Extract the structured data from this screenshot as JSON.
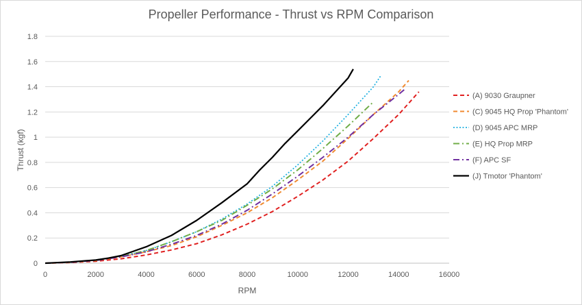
{
  "chart_data": {
    "type": "line",
    "title": "Propeller Performance - Thrust vs RPM Comparison",
    "xlabel": "RPM",
    "ylabel": "Thrust (kgf)",
    "xlim": [
      0,
      16000
    ],
    "ylim": [
      0,
      1.8
    ],
    "xticks": [
      "0",
      "2000",
      "4000",
      "6000",
      "8000",
      "10000",
      "12000",
      "14000",
      "16000"
    ],
    "yticks": [
      "0",
      "0.2",
      "0.4",
      "0.6",
      "0.8",
      "1",
      "1.2",
      "1.4",
      "1.6",
      "1.8"
    ],
    "grid": "horizontal",
    "legend": "right",
    "series": [
      {
        "name": "(A) 9030 Graupner",
        "color": "#e02020",
        "dash": "dashed",
        "x": [
          0,
          1000,
          2000,
          3000,
          4000,
          5000,
          6000,
          7000,
          8000,
          9000,
          10000,
          11000,
          12000,
          13000,
          14000,
          14800
        ],
        "y": [
          0,
          0.005,
          0.015,
          0.035,
          0.065,
          0.105,
          0.155,
          0.225,
          0.31,
          0.41,
          0.53,
          0.66,
          0.81,
          0.99,
          1.18,
          1.36
        ]
      },
      {
        "name": "(C) 9045 HQ Prop 'Phantom'",
        "color": "#f08a30",
        "dash": "dashed",
        "x": [
          0,
          1000,
          2000,
          3000,
          4000,
          5000,
          6000,
          7000,
          8000,
          9000,
          10000,
          11000,
          12000,
          13000,
          14000,
          14400
        ],
        "y": [
          0,
          0.006,
          0.02,
          0.05,
          0.09,
          0.14,
          0.21,
          0.3,
          0.4,
          0.52,
          0.66,
          0.81,
          0.99,
          1.18,
          1.36,
          1.45
        ]
      },
      {
        "name": "(D) 9045 APC MRP",
        "color": "#1fb0e0",
        "dash": "dotted",
        "x": [
          0,
          1000,
          2000,
          3000,
          4000,
          5000,
          6000,
          7000,
          8000,
          9000,
          10000,
          11000,
          12000,
          13000,
          13300
        ],
        "y": [
          0,
          0.008,
          0.025,
          0.055,
          0.1,
          0.17,
          0.25,
          0.35,
          0.47,
          0.61,
          0.78,
          0.97,
          1.18,
          1.4,
          1.49
        ]
      },
      {
        "name": "(E) HQ Prop MRP",
        "color": "#70ad47",
        "dash": "dashdot",
        "x": [
          0,
          1000,
          2000,
          3000,
          4000,
          5000,
          6000,
          7000,
          8000,
          9000,
          10000,
          11000,
          12000,
          13000
        ],
        "y": [
          0,
          0.008,
          0.025,
          0.055,
          0.1,
          0.17,
          0.25,
          0.34,
          0.46,
          0.59,
          0.74,
          0.91,
          1.09,
          1.28
        ]
      },
      {
        "name": "(F) APC SF",
        "color": "#7030a0",
        "dash": "dashdot",
        "x": [
          0,
          1000,
          2000,
          3000,
          4000,
          5000,
          6000,
          7000,
          8000,
          9000,
          10000,
          11000,
          12000,
          13000,
          14000,
          14300
        ],
        "y": [
          0,
          0.007,
          0.022,
          0.05,
          0.09,
          0.15,
          0.22,
          0.31,
          0.42,
          0.55,
          0.69,
          0.84,
          1.0,
          1.18,
          1.34,
          1.39
        ]
      },
      {
        "name": "(J) Tmotor 'Phantom'",
        "color": "#000000",
        "dash": "solid",
        "x": [
          0,
          1000,
          2000,
          2500,
          3000,
          4000,
          5000,
          6000,
          7000,
          8000,
          8500,
          9000,
          9500,
          10000,
          10500,
          11000,
          11500,
          12000,
          12200
        ],
        "y": [
          0,
          0.01,
          0.025,
          0.04,
          0.06,
          0.13,
          0.22,
          0.34,
          0.48,
          0.63,
          0.74,
          0.84,
          0.95,
          1.05,
          1.15,
          1.25,
          1.36,
          1.47,
          1.54
        ]
      }
    ]
  }
}
